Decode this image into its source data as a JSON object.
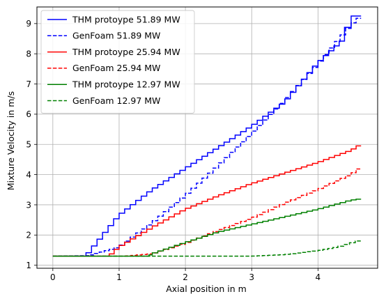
{
  "chart_data": {
    "type": "line",
    "xlabel": "Axial position in m",
    "ylabel": "Mixture Velocity in m/s",
    "xlim": [
      -0.24,
      4.9
    ],
    "ylim": [
      0.9,
      9.55
    ],
    "xticks": [
      "0",
      "1",
      "2",
      "3",
      "4"
    ],
    "yticks": [
      "1",
      "2",
      "3",
      "4",
      "5",
      "6",
      "7",
      "8",
      "9"
    ],
    "grid": true,
    "legend_position": "top-left",
    "line_style": "steps",
    "series": [
      {
        "name": "THM protoype 51.89 MW",
        "color": "#0000ff",
        "dash": "solid",
        "x": [
          0,
          0.5,
          1.0,
          1.5,
          2.0,
          2.5,
          3.0,
          3.5,
          4.0,
          4.4,
          4.5,
          4.65
        ],
        "y": [
          1.3,
          1.3,
          2.65,
          3.5,
          4.2,
          4.9,
          5.6,
          6.4,
          7.7,
          8.5,
          9.25,
          9.25
        ]
      },
      {
        "name": "GenFoam 51.89 MW",
        "color": "#0000ff",
        "dash": "dashed",
        "x": [
          0,
          0.55,
          1.0,
          1.5,
          2.0,
          2.5,
          3.0,
          3.5,
          4.0,
          4.5,
          4.65
        ],
        "y": [
          1.3,
          1.32,
          1.6,
          2.4,
          3.3,
          4.3,
          5.35,
          6.45,
          7.65,
          8.95,
          9.25
        ]
      },
      {
        "name": "THM protoype 25.94 MW",
        "color": "#ff0000",
        "dash": "solid",
        "x": [
          0,
          0.85,
          1.0,
          1.5,
          2.0,
          2.5,
          3.0,
          3.5,
          4.0,
          4.5,
          4.65
        ],
        "y": [
          1.3,
          1.3,
          1.6,
          2.25,
          2.85,
          3.3,
          3.7,
          4.05,
          4.4,
          4.8,
          5.0
        ]
      },
      {
        "name": "GenFoam 25.94 MW",
        "color": "#ff0000",
        "dash": "dashed",
        "x": [
          0,
          1.1,
          1.5,
          2.0,
          2.5,
          3.0,
          3.5,
          4.0,
          4.5,
          4.65
        ],
        "y": [
          1.3,
          1.3,
          1.38,
          1.72,
          2.15,
          2.55,
          3.05,
          3.5,
          4.0,
          4.25
        ]
      },
      {
        "name": "THM protoype 12.97 MW",
        "color": "#008000",
        "dash": "solid",
        "x": [
          0,
          1.45,
          1.5,
          2.0,
          2.5,
          3.0,
          3.5,
          4.0,
          4.5,
          4.65
        ],
        "y": [
          1.3,
          1.3,
          1.38,
          1.75,
          2.1,
          2.35,
          2.6,
          2.85,
          3.15,
          3.2
        ]
      },
      {
        "name": "GenFoam 12.97 MW",
        "color": "#008000",
        "dash": "dashed",
        "x": [
          0,
          3.0,
          3.5,
          4.0,
          4.3,
          4.65
        ],
        "y": [
          1.3,
          1.3,
          1.35,
          1.48,
          1.6,
          1.83
        ]
      }
    ]
  }
}
